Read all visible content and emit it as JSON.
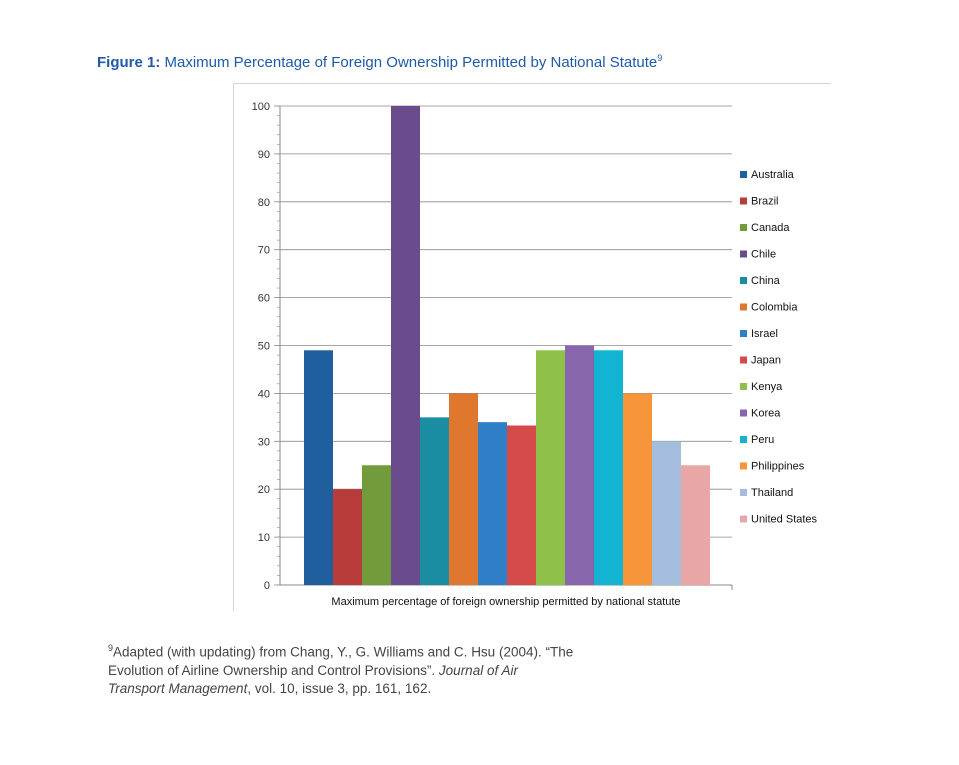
{
  "figure": {
    "label": "Figure 1:",
    "title": " Maximum Percentage of Foreign Ownership Permitted by National Statute",
    "footnote_marker": "9"
  },
  "footnote": {
    "marker": "9",
    "text_before": "Adapted (with updating) from Chang, Y., G. Williams and C. Hsu (2004). “The Evolution of Airline Ownership and Control Provisions”. ",
    "journal": "Journal of Air Transport Management",
    "text_after": ", vol. 10, issue 3, pp. 161, 162."
  },
  "chart_data": {
    "type": "bar",
    "title": "",
    "xlabel": "Maximum percentage of foreign ownership permitted by national statute",
    "ylabel": "",
    "ylim": [
      0,
      100
    ],
    "yticks": [
      0,
      10,
      20,
      30,
      40,
      50,
      60,
      70,
      80,
      90,
      100
    ],
    "grid": true,
    "legend_position": "right",
    "categories": [
      "Maximum percentage of foreign ownership permitted by national statute"
    ],
    "series": [
      {
        "name": "Australia",
        "values": [
          49
        ],
        "color": "#1f5f9e"
      },
      {
        "name": "Brazil",
        "values": [
          20
        ],
        "color": "#b73c3a"
      },
      {
        "name": "Canada",
        "values": [
          25
        ],
        "color": "#729b3c"
      },
      {
        "name": "Chile",
        "values": [
          100
        ],
        "color": "#6a4b8c"
      },
      {
        "name": "China",
        "values": [
          35
        ],
        "color": "#1a8da3"
      },
      {
        "name": "Colombia",
        "values": [
          40
        ],
        "color": "#e0772f"
      },
      {
        "name": "Israel",
        "values": [
          34
        ],
        "color": "#2f7fc6"
      },
      {
        "name": "Japan",
        "values": [
          33.3
        ],
        "color": "#d34a48"
      },
      {
        "name": "Kenya",
        "values": [
          49
        ],
        "color": "#8ec04a"
      },
      {
        "name": "Korea",
        "values": [
          50
        ],
        "color": "#8766ac"
      },
      {
        "name": "Peru",
        "values": [
          49
        ],
        "color": "#12b4d2"
      },
      {
        "name": "Philippines",
        "values": [
          40
        ],
        "color": "#f7953a"
      },
      {
        "name": "Thailand",
        "values": [
          30
        ],
        "color": "#a6bedd"
      },
      {
        "name": "United States",
        "values": [
          25
        ],
        "color": "#e8a7a6"
      }
    ]
  }
}
